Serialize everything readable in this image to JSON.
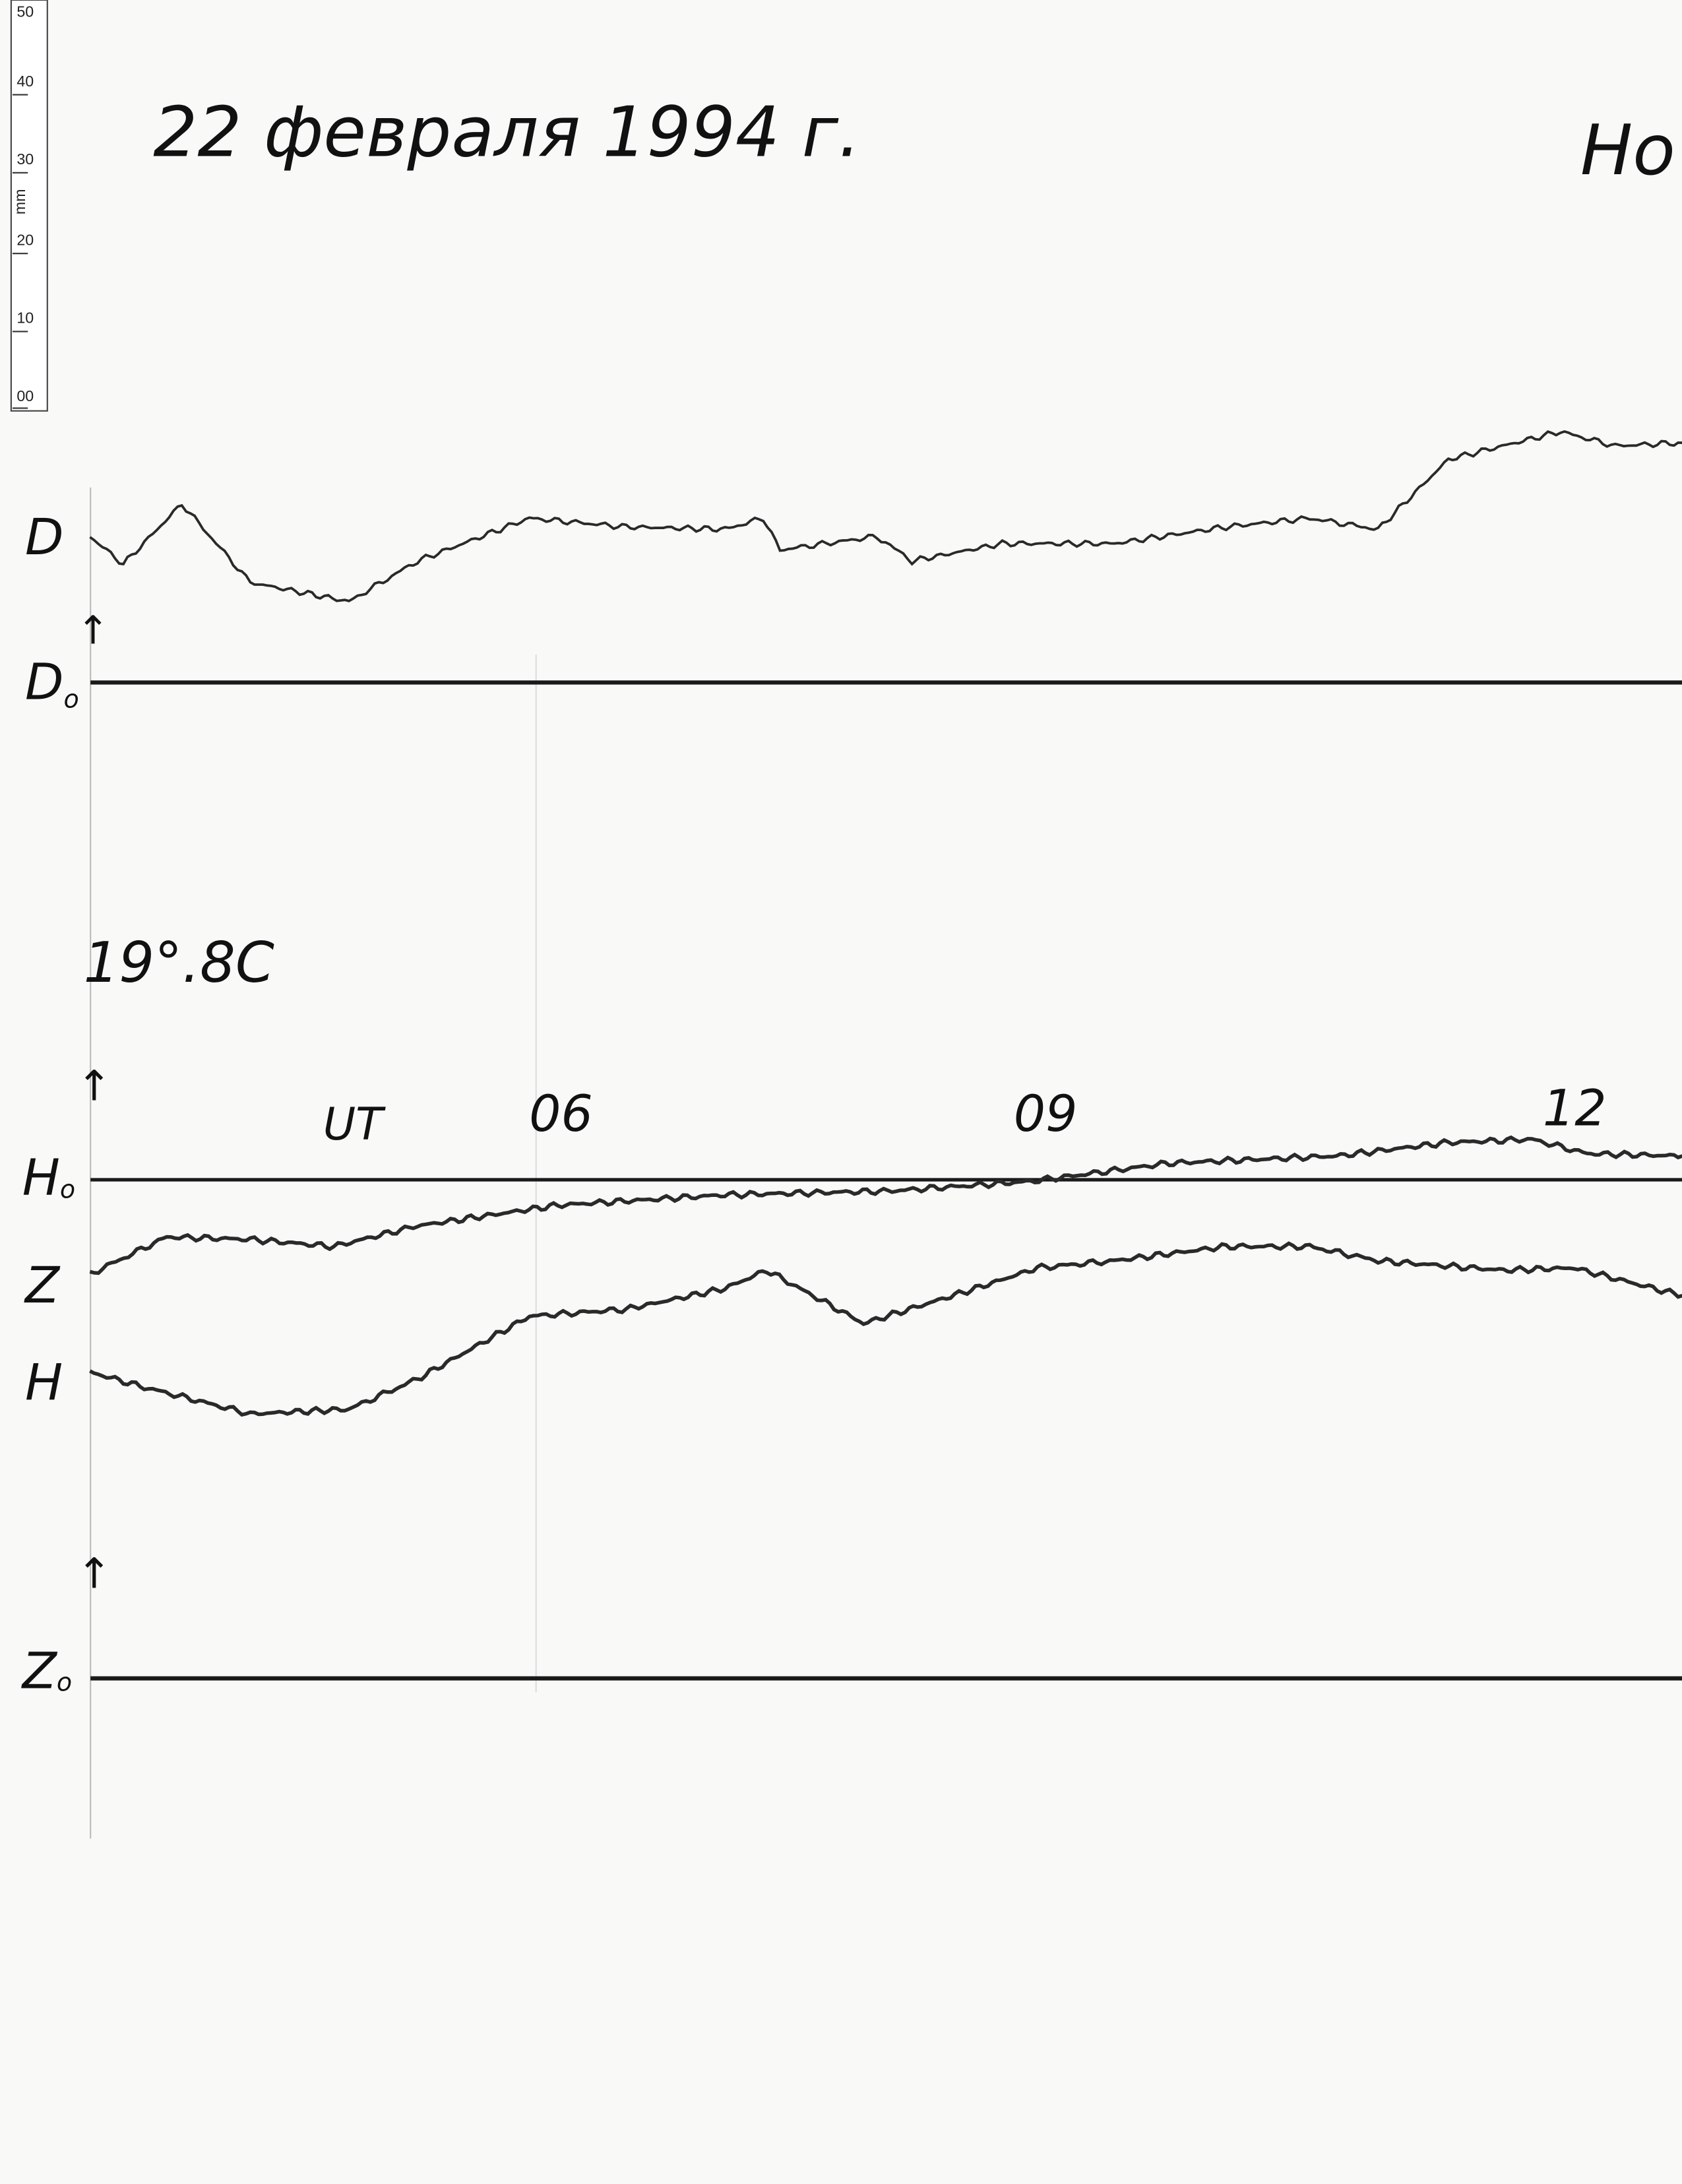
{
  "header": {
    "date_title": "22 февраля 1994 г.",
    "station_label": "Но"
  },
  "ruler": {
    "unit": "mm",
    "ticks": [
      "50",
      "40",
      "30",
      "20",
      "10",
      "00"
    ]
  },
  "labels": {
    "D": "D",
    "D0": "D",
    "D0_sub": "o",
    "temperature": "19°.8C",
    "H0": "H",
    "H0_sub": "o",
    "Z": "Z",
    "H": "H",
    "Z0": "Z",
    "Z0_sub": "o",
    "arrow": "↑",
    "ut": "UT",
    "t06": "06",
    "t09": "09",
    "t12": "12"
  },
  "colors": {
    "paper": "#f9f9f8",
    "trace": "#2a2a2a",
    "baseline": "#1a1a1a"
  },
  "chart_data": {
    "type": "line",
    "title": "22 февраля 1994 г.",
    "xlabel": "UT",
    "x_ticks": [
      "06",
      "09",
      "12"
    ],
    "xlim": [
      3.3,
      12.9
    ],
    "y_unit": "mm",
    "baselines": [
      "D0",
      "H0",
      "Z0"
    ],
    "series": [
      {
        "name": "D",
        "baseline": "D0",
        "x": [
          3.33,
          3.53,
          3.88,
          4.29,
          4.88,
          5.29,
          5.96,
          6.54,
          7.13,
          7.36,
          7.46,
          8.04,
          8.25,
          8.79,
          9.46,
          10.13,
          10.63,
          11.04,
          11.46,
          12.13,
          12.46,
          12.86
        ],
        "y": [
          18.4,
          14.9,
          22.5,
          12.6,
          10.2,
          15.3,
          20.7,
          19.6,
          19.3,
          20.7,
          16.7,
          18.4,
          15.3,
          17.5,
          17.5,
          19.6,
          20.7,
          19.3,
          28.1,
          31.6,
          29.8,
          30.2
        ]
      },
      {
        "name": "Z",
        "baseline": "Z0",
        "x": [
          3.33,
          3.79,
          4.29,
          4.79,
          5.29,
          6.13,
          7.13,
          8.13,
          8.96,
          9.79,
          10.79,
          11.46,
          11.96,
          12.29,
          12.86
        ],
        "y": [
          50.9,
          55.6,
          55.3,
          54.4,
          57.0,
          59.6,
          60.9,
          61.4,
          62.6,
          64.9,
          65.8,
          67.5,
          67.9,
          66.1,
          65.8
        ]
      },
      {
        "name": "H",
        "baseline": "H0",
        "x": [
          3.33,
          3.63,
          4.29,
          4.88,
          5.29,
          5.96,
          6.54,
          7.13,
          7.38,
          7.96,
          8.63,
          9.0,
          9.46,
          10.13,
          10.63,
          11.04,
          11.79,
          12.21,
          12.86
        ],
        "y": [
          -24.2,
          -26.0,
          -29.5,
          -28.9,
          -25.1,
          -17.2,
          -16.3,
          -13.7,
          -11.4,
          -18.1,
          -13.7,
          -11.1,
          -10.2,
          -8.4,
          -8.4,
          -10.2,
          -11.4,
          -11.1,
          -14.6
        ]
      }
    ]
  }
}
